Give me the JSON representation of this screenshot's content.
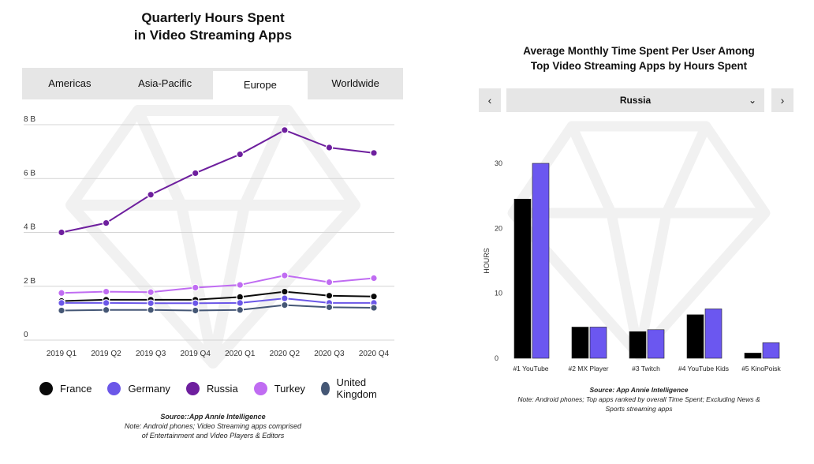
{
  "left": {
    "title_line1": "Quarterly Hours Spent",
    "title_line2": "in Video Streaming Apps",
    "tabs": [
      {
        "label": "Americas",
        "active": false
      },
      {
        "label": "Asia-Pacific",
        "active": false
      },
      {
        "label": "Europe",
        "active": true
      },
      {
        "label": "Worldwide",
        "active": false
      }
    ],
    "source": "Source::App Annie Intelligence",
    "note_line1": "Note: Android phones; Video Streaming apps comprised",
    "note_line2": "of Entertainment and Video Players & Editors"
  },
  "right": {
    "title_line1": "Average Monthly Time Spent Per User Among",
    "title_line2": "Top Video Streaming Apps by Hours Spent",
    "prev_label": "‹",
    "next_label": "›",
    "selected_country": "Russia",
    "select_chevron": "⌄",
    "source": "Source: App Annie Intelligence",
    "note_line1": "Note: Android phones; Top apps ranked by overall Time Spent; Excluding News &",
    "note_line2": "Sports streaming apps"
  },
  "chart_data": [
    {
      "type": "line",
      "title": "Quarterly Hours Spent in Video Streaming Apps",
      "categories": [
        "2019 Q1",
        "2019 Q2",
        "2019 Q3",
        "2019 Q4",
        "2020 Q1",
        "2020 Q2",
        "2020 Q3",
        "2020 Q4"
      ],
      "y_ticks": [
        "0",
        "2 B",
        "4 B",
        "6 B",
        "8 B"
      ],
      "ylim": [
        0,
        8
      ],
      "grid": true,
      "legend_position": "bottom",
      "series": [
        {
          "name": "France",
          "color": "#0a0a0a",
          "values": [
            1.45,
            1.5,
            1.5,
            1.5,
            1.6,
            1.8,
            1.65,
            1.62
          ]
        },
        {
          "name": "Germany",
          "color": "#6b57e8",
          "values": [
            1.38,
            1.38,
            1.37,
            1.37,
            1.38,
            1.55,
            1.38,
            1.38
          ]
        },
        {
          "name": "Russia",
          "color": "#6e1f9e",
          "values": [
            4.0,
            4.35,
            5.4,
            6.2,
            6.9,
            7.8,
            7.15,
            6.95
          ]
        },
        {
          "name": "Turkey",
          "color": "#c06cf2",
          "values": [
            1.75,
            1.8,
            1.78,
            1.95,
            2.05,
            2.4,
            2.15,
            2.3
          ]
        },
        {
          "name": "United Kingdom",
          "color": "#455775",
          "values": [
            1.1,
            1.12,
            1.12,
            1.1,
            1.12,
            1.3,
            1.22,
            1.2
          ]
        }
      ]
    },
    {
      "type": "bar",
      "title": "Average Monthly Time Spent Per User Among Top Video Streaming Apps by Hours Spent",
      "ylabel": "HOURS",
      "categories": [
        "#1 YouTube",
        "#2 MX Player",
        "#3 Twitch",
        "#4 YouTube Kids",
        "#5 KinoPoisk"
      ],
      "y_ticks": [
        "0",
        "10",
        "20",
        "30"
      ],
      "ylim": [
        0,
        30
      ],
      "grid": false,
      "series": [
        {
          "color": "#000000",
          "values": [
            24.5,
            4.8,
            4.1,
            6.7,
            0.8
          ]
        },
        {
          "color": "#6b57f0",
          "values": [
            30.0,
            4.8,
            4.4,
            7.6,
            2.4
          ]
        }
      ]
    }
  ]
}
